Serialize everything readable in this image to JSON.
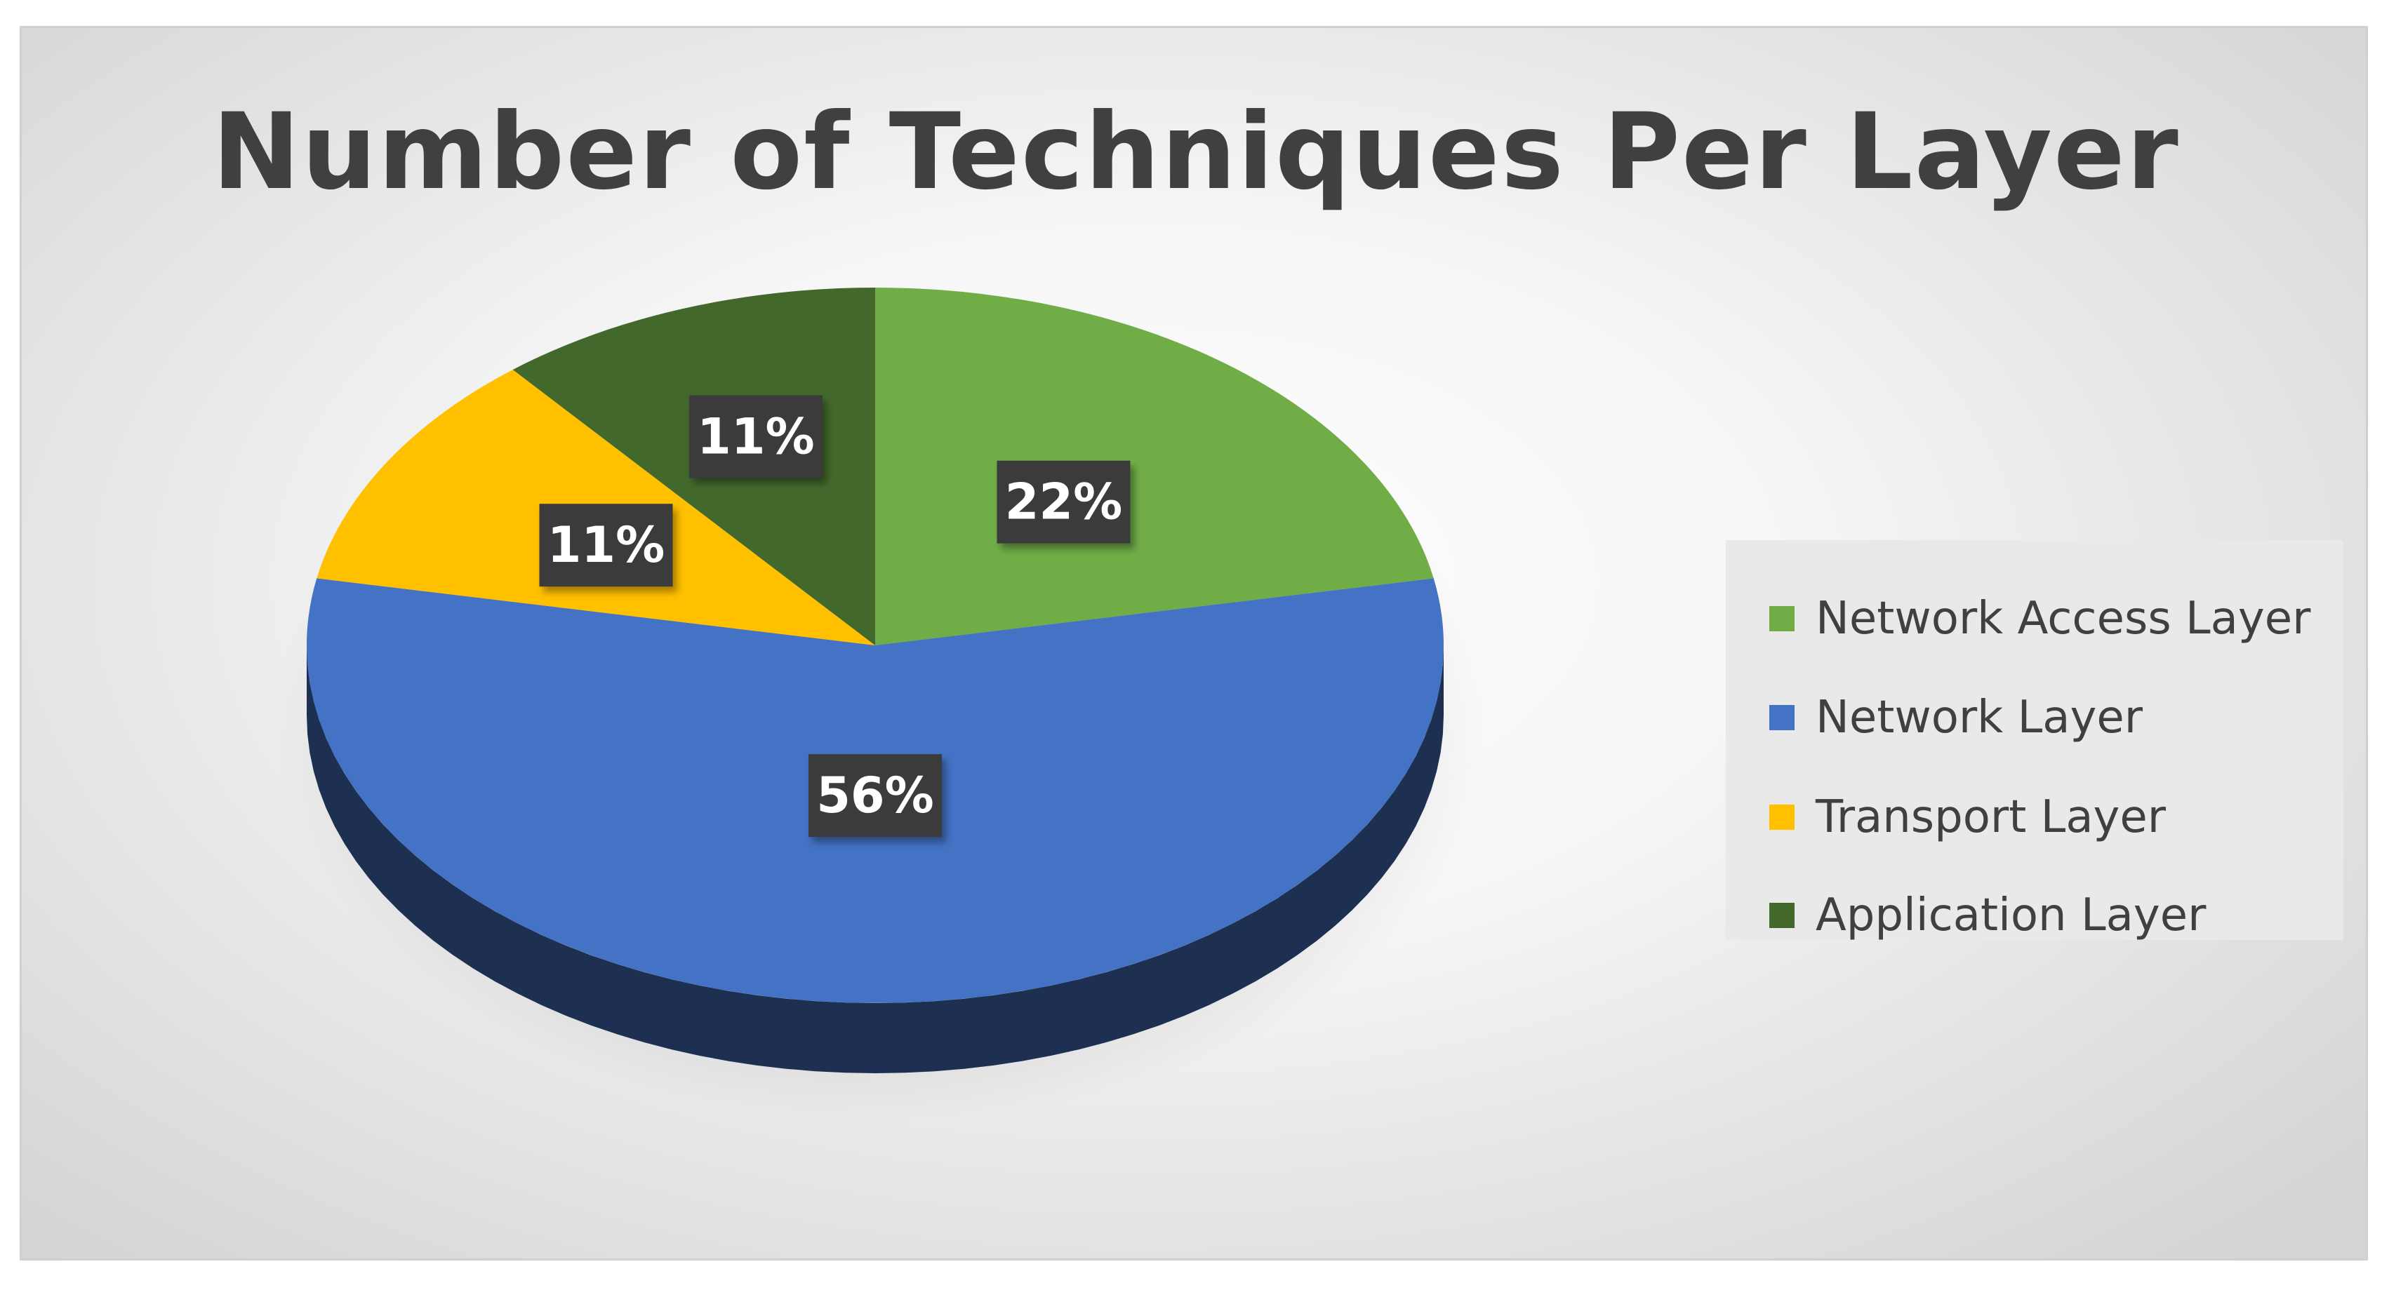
{
  "chart_data": {
    "type": "pie",
    "title": "Number of Techniques Per Layer",
    "series": [
      {
        "name": "Network Access Layer",
        "value": 22,
        "label": "22%",
        "color": "#70AD47"
      },
      {
        "name": "Network Layer",
        "value": 56,
        "label": "56%",
        "color": "#4472C4"
      },
      {
        "name": "Transport Layer",
        "value": 11,
        "label": "11%",
        "color": "#FFC000"
      },
      {
        "name": "Application Layer",
        "value": 11,
        "label": "11%",
        "color": "#43682B"
      }
    ],
    "legend_position": "right",
    "data_label_style": "dark boxes",
    "effect": "3d"
  }
}
